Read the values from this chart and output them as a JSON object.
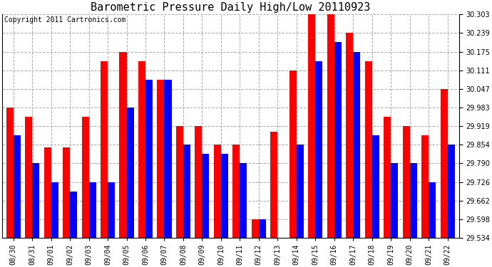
{
  "title": "Barometric Pressure Daily High/Low 20110923",
  "copyright": "Copyright 2011 Cartronics.com",
  "dates": [
    "08/30",
    "08/31",
    "09/01",
    "09/02",
    "09/03",
    "09/04",
    "09/05",
    "09/06",
    "09/07",
    "09/08",
    "09/09",
    "09/10",
    "09/11",
    "09/12",
    "09/13",
    "09/14",
    "09/15",
    "09/16",
    "09/17",
    "09/18",
    "09/19",
    "09/20",
    "09/21",
    "09/22"
  ],
  "highs": [
    29.983,
    29.951,
    29.844,
    29.844,
    29.951,
    30.143,
    30.175,
    30.143,
    30.079,
    29.919,
    29.919,
    29.855,
    29.855,
    29.598,
    29.9,
    30.111,
    30.303,
    30.303,
    30.239,
    30.143,
    29.951,
    29.919,
    29.887,
    30.047
  ],
  "lows": [
    29.887,
    29.79,
    29.726,
    29.694,
    29.726,
    29.726,
    29.983,
    30.079,
    30.079,
    29.855,
    29.823,
    29.823,
    29.79,
    29.598,
    29.534,
    29.855,
    30.143,
    30.207,
    30.175,
    29.887,
    29.79,
    29.79,
    29.726,
    29.855
  ],
  "high_color": "#ff0000",
  "low_color": "#0000ff",
  "background_color": "#ffffff",
  "grid_color": "#aaaaaa",
  "ymin": 29.534,
  "ymax": 30.303,
  "yticks": [
    29.534,
    29.598,
    29.662,
    29.726,
    29.79,
    29.854,
    29.919,
    29.983,
    30.047,
    30.111,
    30.175,
    30.239,
    30.303
  ],
  "bar_width": 0.38,
  "title_fontsize": 11,
  "tick_fontsize": 7,
  "copyright_fontsize": 7
}
